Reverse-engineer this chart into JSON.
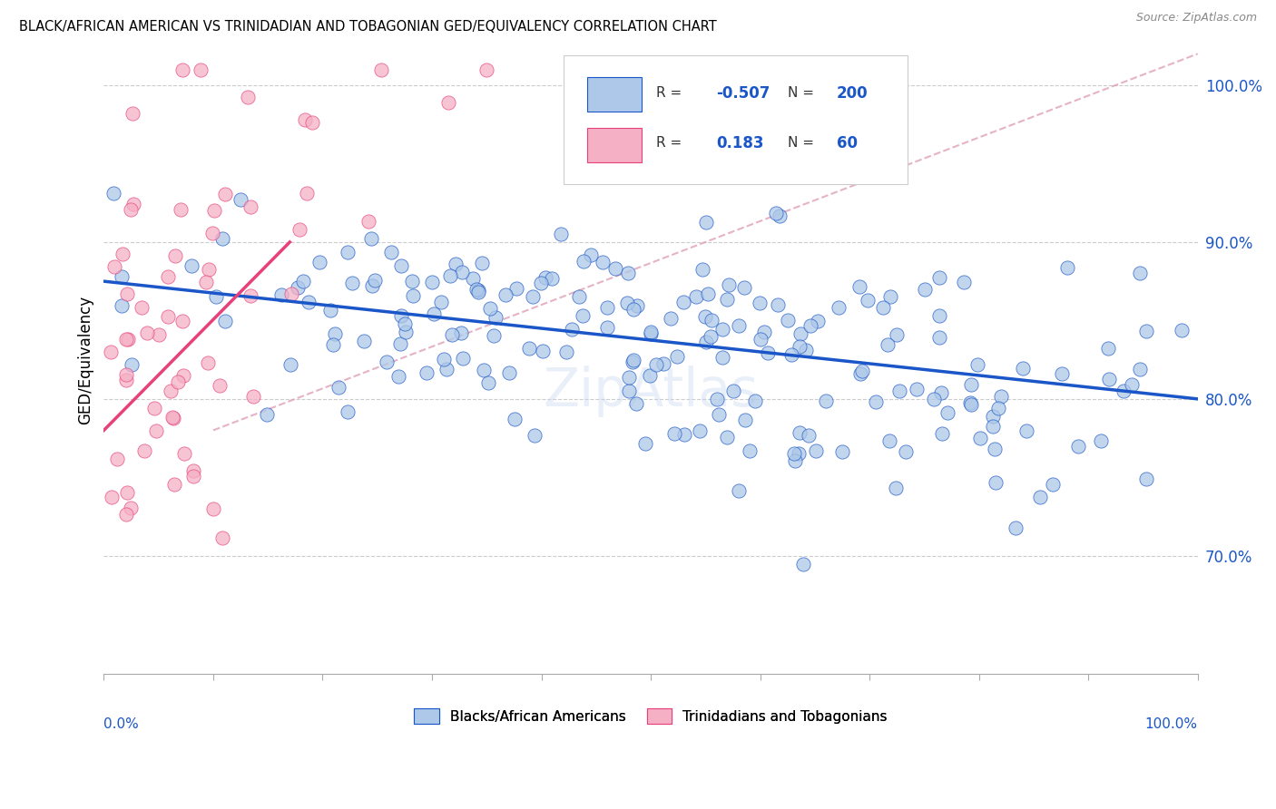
{
  "title": "BLACK/AFRICAN AMERICAN VS TRINIDADIAN AND TOBAGONIAN GED/EQUIVALENCY CORRELATION CHART",
  "source": "Source: ZipAtlas.com",
  "ylabel": "GED/Equivalency",
  "xlim": [
    0.0,
    1.0
  ],
  "ylim": [
    0.625,
    1.025
  ],
  "yticks": [
    0.7,
    0.8,
    0.9,
    1.0
  ],
  "ytick_labels": [
    "70.0%",
    "80.0%",
    "90.0%",
    "100.0%"
  ],
  "blue_color": "#adc8e8",
  "pink_color": "#f5b0c5",
  "blue_line_color": "#1a56c8",
  "pink_line_color": "#e8407a",
  "dashed_line_color": "#e0a0b8",
  "R_blue": -0.507,
  "N_blue": 200,
  "R_pink": 0.183,
  "N_pink": 60,
  "legend_label_blue": "Blacks/African Americans",
  "legend_label_pink": "Trinidadians and Tobagonians",
  "watermark": "ZipAtlas",
  "blue_line_x0": 0.0,
  "blue_line_y0": 0.875,
  "blue_line_x1": 1.0,
  "blue_line_y1": 0.8,
  "pink_line_x0": 0.0,
  "pink_line_y0": 0.78,
  "pink_line_x1": 0.17,
  "pink_line_y1": 0.9,
  "dashed_line_x0": 0.1,
  "dashed_line_y0": 0.78,
  "dashed_line_x1": 1.0,
  "dashed_line_y1": 1.02
}
